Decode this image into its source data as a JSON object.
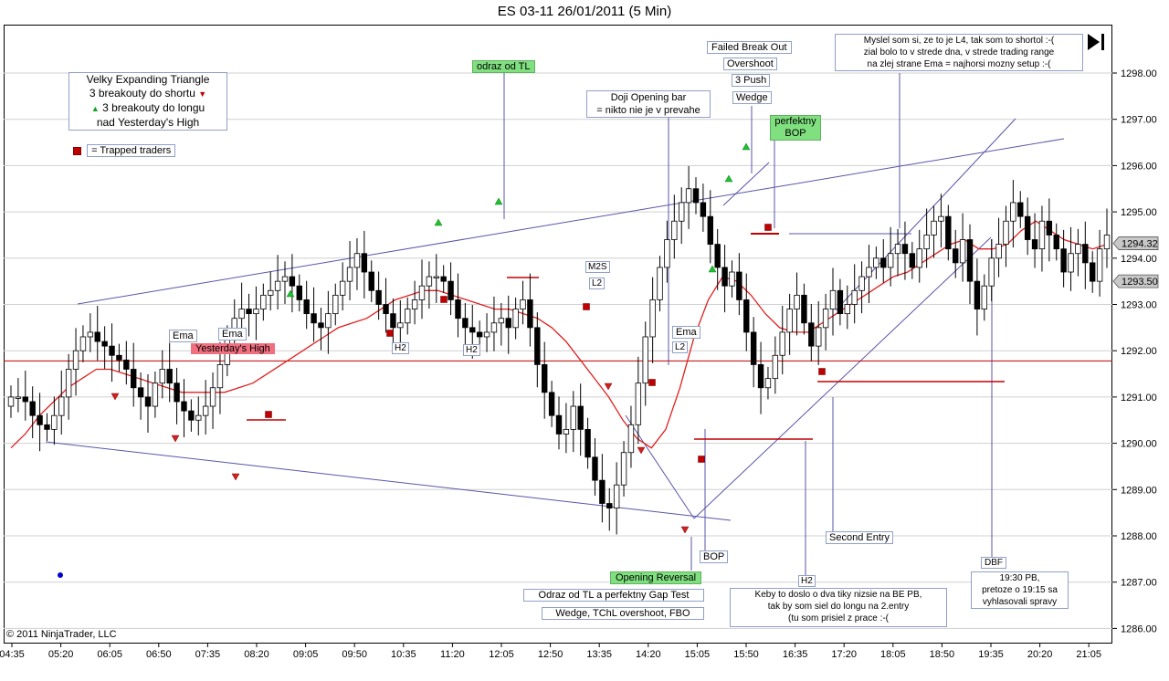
{
  "chart_title": "ES 03-11  26/01/2011 (5 Min)",
  "copyright": "© 2011 NinjaTrader, LLC",
  "chart_data": {
    "type": "candlestick",
    "instrument": "ES 03-11",
    "date": "26/01/2011",
    "interval": "5 Min",
    "ylim": [
      1285.8,
      1298.5
    ],
    "y_ticks": [
      "1286.00",
      "1287.00",
      "1288.00",
      "1289.00",
      "1290.00",
      "1291.00",
      "1292.00",
      "1293.00",
      "1294.00",
      "1295.00",
      "1296.00",
      "1297.00",
      "1298.00"
    ],
    "x_ticks": [
      "04:35",
      "05:20",
      "06:05",
      "06:50",
      "07:35",
      "08:20",
      "09:05",
      "09:50",
      "10:35",
      "11:20",
      "12:05",
      "12:50",
      "13:35",
      "14:20",
      "15:05",
      "15:50",
      "16:35",
      "17:20",
      "18:05",
      "18:50",
      "19:35",
      "20:20",
      "21:05"
    ],
    "price_labels": [
      {
        "text": "1294.32",
        "value": 1294.32,
        "color": "#c8c8c8"
      },
      {
        "text": "1293.50",
        "value": 1293.5,
        "color": "#c8c8c8"
      }
    ],
    "close_series": [
      1291,
      1291,
      1290.9,
      1290.6,
      1290.4,
      1290.3,
      1290.6,
      1291,
      1291.6,
      1292,
      1292.3,
      1292.4,
      1292.2,
      1292.1,
      1291.9,
      1291.8,
      1291.6,
      1291.2,
      1291,
      1290.8,
      1291.3,
      1291.6,
      1291.3,
      1290.9,
      1290.7,
      1290.5,
      1290.6,
      1290.8,
      1291.2,
      1291.7,
      1292.3,
      1292.7,
      1292.9,
      1292.8,
      1292.9,
      1293.2,
      1293.3,
      1293.5,
      1293.6,
      1293.4,
      1293.1,
      1292.8,
      1292.6,
      1292.5,
      1292.8,
      1293.2,
      1293.5,
      1293.8,
      1294.1,
      1293.7,
      1293.3,
      1293,
      1292.8,
      1292.5,
      1292.6,
      1292.9,
      1293.1,
      1293.4,
      1293.6,
      1293.6,
      1293.5,
      1293.1,
      1292.7,
      1292.5,
      1292.4,
      1292.3,
      1292.4,
      1292.6,
      1292.7,
      1292.5,
      1292.9,
      1293.1,
      1292.5,
      1291.7,
      1291.1,
      1290.6,
      1290.2,
      1290.3,
      1290.8,
      1290.3,
      1289.7,
      1289.2,
      1288.7,
      1288.6,
      1289.1,
      1289.8,
      1290.4,
      1291.3,
      1292.3,
      1293.1,
      1293.8,
      1294.4,
      1294.8,
      1295.2,
      1295.5,
      1295.2,
      1294.9,
      1294.3,
      1293.8,
      1293.4,
      1293.7,
      1293.1,
      1292.4,
      1291.7,
      1291.2,
      1291.4,
      1291.9,
      1292.4,
      1292.9,
      1293.2,
      1292.6,
      1292.1,
      1292.5,
      1292.9,
      1293.3,
      1292.8,
      1293,
      1293.3,
      1293.6,
      1293.8,
      1294,
      1293.8,
      1294.1,
      1294.3,
      1294.1,
      1293.8,
      1294.2,
      1294.5,
      1294.8,
      1294.9,
      1294.2,
      1293.9,
      1294.4,
      1293.5,
      1292.9,
      1293.4,
      1294,
      1294.3,
      1294.8,
      1295.2,
      1294.9,
      1294.4,
      1294.2,
      1294.8,
      1294.5,
      1294.2,
      1293.7,
      1294.1,
      1294.3,
      1293.9,
      1293.5,
      1294.2,
      1294.5
    ],
    "ema_series": [
      1289.9,
      1290.2,
      1290.6,
      1290.9,
      1291.2,
      1291.4,
      1291.6,
      1291.6,
      1291.5,
      1291.4,
      1291.3,
      1291.2,
      1291.1,
      1291.1,
      1291.1,
      1291.1,
      1291.2,
      1291.3,
      1291.5,
      1291.7,
      1291.9,
      1292.1,
      1292.3,
      1292.5,
      1292.6,
      1292.7,
      1292.9,
      1293.1,
      1293.2,
      1293.3,
      1293.3,
      1293.2,
      1293.1,
      1293,
      1292.9,
      1292.9,
      1292.8,
      1292.7,
      1292.5,
      1292.2,
      1291.8,
      1291.4,
      1291,
      1290.5,
      1290.1,
      1289.9,
      1290.3,
      1291.2,
      1292.3,
      1293.1,
      1293.6,
      1293.5,
      1293.2,
      1292.8,
      1292.5,
      1292.4,
      1292.4,
      1292.6,
      1292.8,
      1293,
      1293.2,
      1293.4,
      1293.6,
      1293.7,
      1293.9,
      1294.1,
      1294.3,
      1294.4,
      1294.2,
      1294.2,
      1294.3,
      1294.6,
      1294.8,
      1294.6,
      1294.4,
      1294.3,
      1294.2,
      1294.3
    ],
    "horizontal_lines": [
      {
        "name": "Yesterday's High",
        "value": 1291.78,
        "color": "#c00000"
      }
    ],
    "annotations": [
      "Velky Expanding Triangle",
      "3 breakouty do shortu",
      "3 breakouty do longu",
      "nad Yesterday's High",
      "= Trapped traders",
      "odraz od TL",
      "Doji Opening bar",
      "= nikto nie je v prevahe",
      "Failed Break Out",
      "Overshoot",
      "3 Push",
      "Wedge",
      "perfektny",
      "BOP",
      "Myslel som si, ze to je L4, tak som to shortol :-(",
      "zial bolo to v strede dna, v strede trading range",
      "na zlej strane Ema = najhorsi mozny setup :-(",
      "Ema",
      "Yesterday's High",
      "H2",
      "M2S",
      "L2",
      "Opening Reversal",
      "Odraz od TL a perfektny Gap Test",
      "Wedge, TChL overshoot, FBO",
      "Second Entry",
      "Keby to doslo o dva tiky nizsie na BE PB,",
      "tak by som siel do longu na 2.entry",
      "(tu som prisiel z prace :-(",
      "DBF",
      "19:30 PB,",
      "pretoze o 19:15 sa",
      "vyhlasovali spravy"
    ]
  },
  "labels": {
    "triangle1": "Velky Expanding Triangle",
    "triangle2": "3 breakouty do shortu",
    "triangle3": "3 breakouty do longu",
    "triangle4": "nad Yesterday's High",
    "trapped": "= Trapped traders",
    "odraz_tl": "odraz od TL",
    "doji1": "Doji Opening bar",
    "doji2": "= nikto nie je v prevahe",
    "fbo": "Failed Break Out",
    "overshoot": "Overshoot",
    "push3": "3 Push",
    "wedge": "Wedge",
    "perf1": "perfektny",
    "perf2": "BOP",
    "mysl1": "Myslel som si, ze to je L4, tak som to shortol :-(",
    "mysl2": "zial bolo to v strede dna, v strede trading range",
    "mysl3": "na zlej strane Ema = najhorsi mozny setup :-(",
    "ema": "Ema",
    "yhigh": "Yesterday's High",
    "h2": "H2",
    "m2s": "M2S",
    "l2": "L2",
    "bop": "BOP",
    "opening_rev": "Opening Reversal",
    "gap_test": "Odraz od TL a perfektny Gap Test",
    "wedge_tchl": "Wedge, TChL overshoot, FBO",
    "second_entry": "Second Entry",
    "keby1": "Keby to doslo o dva tiky nizsie na BE PB,",
    "keby2": "tak by som siel do longu na 2.entry",
    "keby3": "(tu som prisiel z prace :-(",
    "dbf": "DBF",
    "pb1": "19:30 PB,",
    "pb2": "pretoze o 19:15 sa",
    "pb3": "vyhlasovali spravy"
  }
}
